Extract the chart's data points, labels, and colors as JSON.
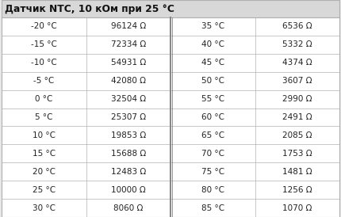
{
  "title": "Датчик NTC, 10 кОм при 25 °C",
  "left_col": [
    [
      "-20 °C",
      "96124 Ω"
    ],
    [
      "-15 °C",
      "72334 Ω"
    ],
    [
      "-10 °C",
      "54931 Ω"
    ],
    [
      "-5 °C",
      "42080 Ω"
    ],
    [
      "0 °C",
      "32504 Ω"
    ],
    [
      "5 °C",
      "25307 Ω"
    ],
    [
      "10 °C",
      "19853 Ω"
    ],
    [
      "15 °C",
      "15688 Ω"
    ],
    [
      "20 °C",
      "12483 Ω"
    ],
    [
      "25 °C",
      "10000 Ω"
    ],
    [
      "30 °C",
      "8060 Ω"
    ]
  ],
  "right_col": [
    [
      "35 °C",
      "6536 Ω"
    ],
    [
      "40 °C",
      "5332 Ω"
    ],
    [
      "45 °C",
      "4374 Ω"
    ],
    [
      "50 °C",
      "3607 Ω"
    ],
    [
      "55 °C",
      "2990 Ω"
    ],
    [
      "60 °C",
      "2491 Ω"
    ],
    [
      "65 °C",
      "2085 Ω"
    ],
    [
      "70 °C",
      "1753 Ω"
    ],
    [
      "75 °C",
      "1481 Ω"
    ],
    [
      "80 °C",
      "1256 Ω"
    ],
    [
      "85 °C",
      "1070 Ω"
    ]
  ],
  "bg_color": "#e8e8e8",
  "table_bg": "#ffffff",
  "title_bg": "#d8d8d8",
  "line_color": "#b0b0b0",
  "mid_line_color": "#888888",
  "title_color": "#111111",
  "cell_text_color": "#222222",
  "title_fontsize": 8.8,
  "cell_fontsize": 7.5
}
